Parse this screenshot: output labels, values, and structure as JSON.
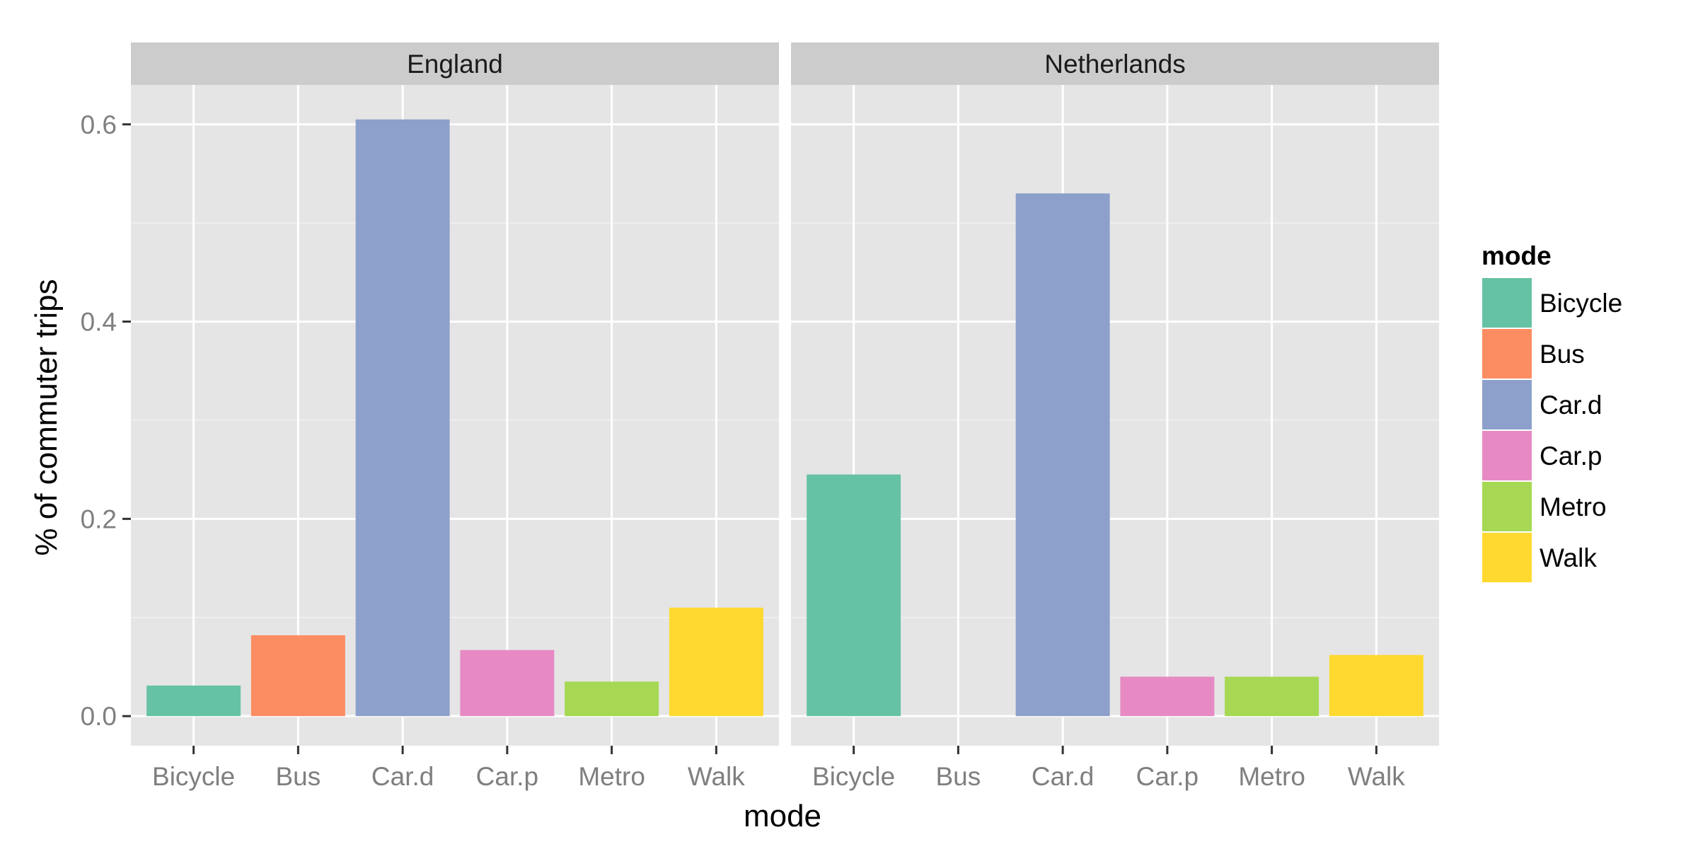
{
  "chart_data": {
    "type": "bar",
    "facet_by": "country",
    "panels": [
      "England",
      "Netherlands"
    ],
    "categories": [
      "Bicycle",
      "Bus",
      "Car.d",
      "Car.p",
      "Metro",
      "Walk"
    ],
    "values": {
      "England": [
        0.031,
        0.082,
        0.605,
        0.067,
        0.035,
        0.11
      ],
      "Netherlands": [
        0.245,
        0.0,
        0.53,
        0.04,
        0.04,
        0.062
      ]
    },
    "colors": {
      "Bicycle": "#66c2a5",
      "Bus": "#fc8d62",
      "Car.d": "#8da0cb",
      "Car.p": "#e78ac3",
      "Metro": "#a6d854",
      "Walk": "#ffd92f"
    },
    "xlabel": "mode",
    "ylabel": "% of commuter trips",
    "ylim": [
      -0.03,
      0.64
    ],
    "yticks": [
      0.0,
      0.2,
      0.4,
      0.6
    ],
    "ytick_labels": [
      "0.0",
      "0.2",
      "0.4",
      "0.6"
    ],
    "grid": true,
    "legend": {
      "title": "mode",
      "position": "right",
      "items": [
        "Bicycle",
        "Bus",
        "Car.d",
        "Car.p",
        "Metro",
        "Walk"
      ]
    }
  }
}
